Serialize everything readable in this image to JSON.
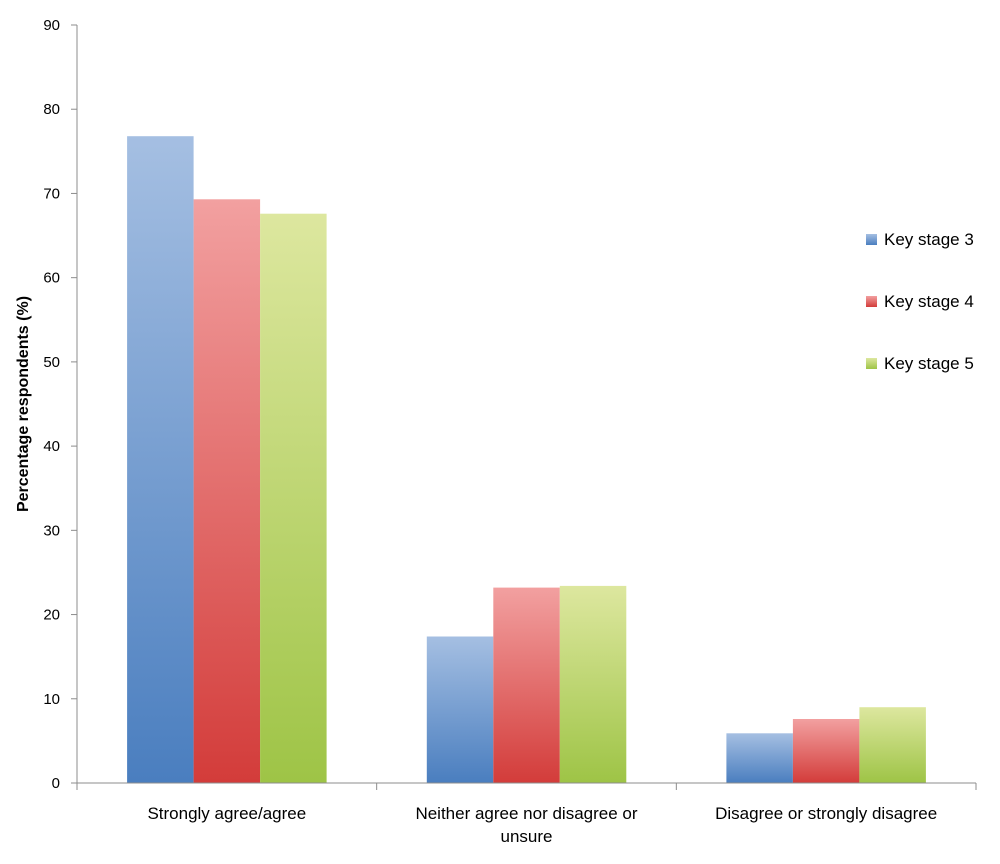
{
  "chart_data": {
    "type": "bar",
    "title": "",
    "xlabel": "",
    "ylabel": "Percentage respondents (%)",
    "ylim": [
      0,
      90
    ],
    "yticks": [
      0,
      10,
      20,
      30,
      40,
      50,
      60,
      70,
      80,
      90
    ],
    "categories": [
      [
        "Strongly agree/agree"
      ],
      [
        "Neither agree nor disagree or",
        "unsure"
      ],
      [
        "Disagree or strongly disagree"
      ]
    ],
    "series": [
      {
        "name": "Key stage 3",
        "values": [
          76.8,
          17.4,
          5.9
        ],
        "color_top": "#a5bfe2",
        "color_bottom": "#4a7ebf"
      },
      {
        "name": "Key stage 4",
        "values": [
          69.3,
          23.2,
          7.6
        ],
        "color_top": "#f2a0a0",
        "color_bottom": "#d33c3a"
      },
      {
        "name": "Key stage 5",
        "values": [
          67.6,
          23.4,
          9.0
        ],
        "color_top": "#dde79f",
        "color_bottom": "#9ec446"
      }
    ],
    "legend_position": "right",
    "grid": false
  }
}
